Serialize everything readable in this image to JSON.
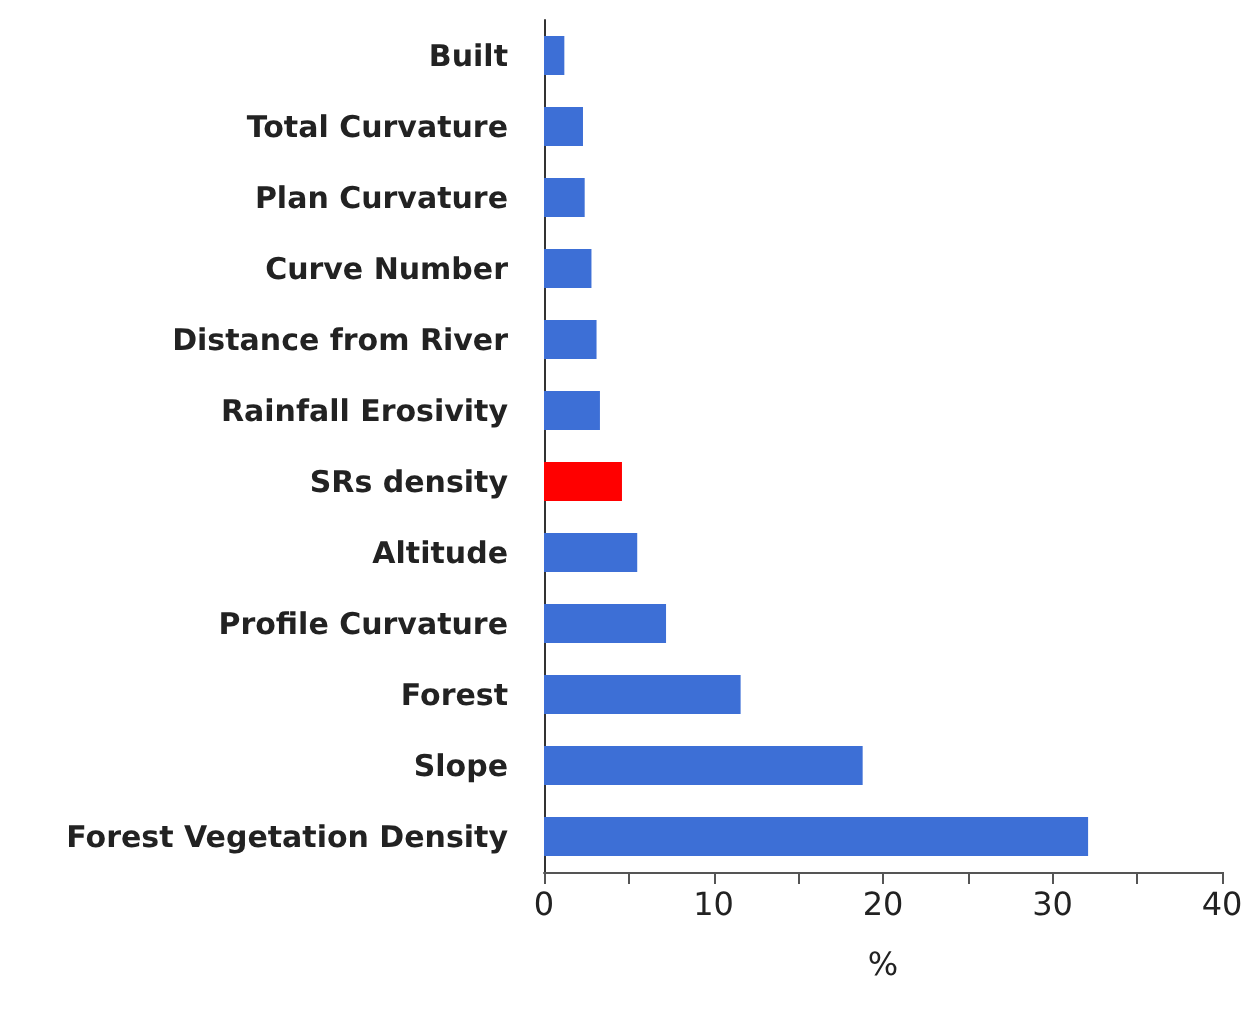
{
  "chart_data": {
    "type": "bar",
    "orientation": "horizontal",
    "xlabel": "%",
    "categories": [
      "Built",
      "Total Curvature",
      "Plan Curvature",
      "Curve Number",
      "Distance from River",
      "Rainfall Erosivity",
      "SRs density",
      "Altitude",
      "Profile Curvature",
      "Forest",
      "Slope",
      "Forest Vegetation Density"
    ],
    "values": [
      1.2,
      2.3,
      2.4,
      2.8,
      3.1,
      3.3,
      4.6,
      5.5,
      7.2,
      11.6,
      18.8,
      32.1
    ],
    "colors": [
      "#3d6fd6",
      "#3d6fd6",
      "#3d6fd6",
      "#3d6fd6",
      "#3d6fd6",
      "#3d6fd6",
      "#ff0000",
      "#3d6fd6",
      "#3d6fd6",
      "#3d6fd6",
      "#3d6fd6",
      "#3d6fd6"
    ],
    "xlim": [
      0,
      40
    ],
    "xticks": [
      0,
      {
        "value": 5,
        "label": null
      },
      10,
      {
        "value": 15,
        "label": null
      },
      20,
      {
        "value": 25,
        "label": null
      },
      30,
      {
        "value": 35,
        "label": null
      },
      40
    ],
    "grid": false
  }
}
